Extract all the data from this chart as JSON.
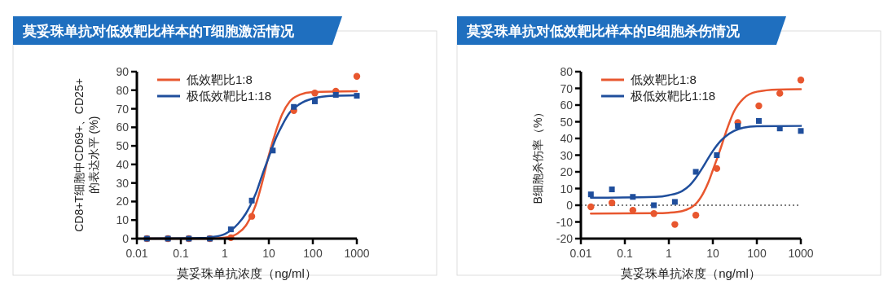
{
  "chart_data": [
    {
      "type": "scatter",
      "title": "莫妥珠单抗对低效靶比样本的T细胞激活情况",
      "xlabel": "莫妥珠单抗浓度（ng/ml）",
      "ylabel": "CD8+T细胞中CD69+、CD25+\n的表达水平 (%)",
      "log": "x",
      "xlim": [
        0.01,
        1000
      ],
      "xticks": [
        0.01,
        0.1,
        1,
        10,
        100,
        1000
      ],
      "ylim": [
        0,
        90
      ],
      "yticks": [
        0,
        10,
        20,
        30,
        40,
        50,
        60,
        70,
        80,
        90
      ],
      "grid": false,
      "legend": "top left",
      "series": [
        {
          "type": "line",
          "name": "低效靶比1:8",
          "color": "#e8572f",
          "x": [
            0.0169,
            0.5,
            1,
            2,
            3,
            4,
            5,
            7,
            10,
            15,
            20,
            30,
            50,
            100,
            1000
          ],
          "values": [
            0,
            0,
            0.5,
            3,
            7,
            12.5,
            18,
            30,
            45,
            59,
            67,
            74,
            77.5,
            79,
            79.5
          ]
        },
        {
          "type": "line",
          "name": "极低效靶比1:18",
          "color": "#1f4e9c",
          "x": [
            0.0169,
            0.3,
            0.5,
            1,
            2,
            3,
            4,
            5,
            7,
            10,
            15,
            20,
            30,
            50,
            100,
            300,
            1000
          ],
          "values": [
            0,
            0.3,
            0.8,
            2.5,
            8,
            13.5,
            19,
            24,
            34,
            44,
            55,
            61,
            68,
            72.5,
            75.5,
            77,
            77.3
          ]
        },
        {
          "color": "#e8572f",
          "marker": "circle",
          "x": [
            0.0169,
            0.0508,
            0.152,
            0.457,
            1.37,
            4.1,
            12.3,
            37,
            111,
            333,
            1000
          ],
          "values": [
            0,
            0,
            0,
            0,
            0.5,
            12,
            null,
            69,
            78.5,
            79.5,
            87.5
          ]
        },
        {
          "color": "#1f4e9c",
          "marker": "square",
          "x": [
            0.0169,
            0.0508,
            0.152,
            0.457,
            1.37,
            4.1,
            12.3,
            37,
            111,
            333,
            1000
          ],
          "values": [
            0,
            0,
            0,
            0,
            5,
            20.5,
            47.5,
            71,
            74,
            77.5,
            77
          ]
        }
      ]
    },
    {
      "type": "scatter",
      "title": "莫妥珠单抗对低效靶比样本的B细胞杀伤情况",
      "xlabel": "莫妥珠单抗浓度（ng/ml）",
      "ylabel": "B细胞杀伤率（%）",
      "log": "x",
      "xlim": [
        0.01,
        1000
      ],
      "xticks": [
        0.01,
        0.1,
        1,
        10,
        100,
        1000
      ],
      "ylim": [
        -20,
        80
      ],
      "yticks": [
        -20,
        -10,
        0,
        10,
        20,
        30,
        40,
        50,
        60,
        70,
        80
      ],
      "grid": false,
      "legend": "top left",
      "ref_lines": [
        {
          "axis": "y",
          "value": 0,
          "color": "#555555",
          "line_style": "dotted"
        }
      ],
      "series": [
        {
          "type": "line",
          "name": "低效靶比1:8",
          "color": "#e8572f",
          "x": [
            0.0169,
            0.5,
            1,
            2,
            3,
            4,
            6,
            8,
            10,
            15,
            20,
            30,
            50,
            100,
            300,
            1000
          ],
          "values": [
            -5,
            -4.8,
            -4.5,
            -3.5,
            -1.8,
            0.5,
            7,
            14,
            21,
            34,
            44,
            56,
            64,
            68,
            69.3,
            69.5
          ]
        },
        {
          "type": "line",
          "name": "极低效靶比1:18",
          "color": "#1f4e9c",
          "x": [
            0.0169,
            0.5,
            1,
            2,
            3,
            4,
            6,
            8,
            10,
            15,
            20,
            30,
            50,
            100,
            1000
          ],
          "values": [
            4.5,
            5,
            6,
            8.5,
            12,
            16,
            23,
            28.5,
            32.5,
            38.5,
            41.5,
            44.5,
            46.5,
            47.3,
            47.5
          ]
        },
        {
          "color": "#e8572f",
          "marker": "circle",
          "x": [
            0.0169,
            0.0508,
            0.152,
            0.457,
            1.37,
            4.1,
            12.3,
            37,
            111,
            333,
            1000
          ],
          "values": [
            -1,
            1.5,
            -3,
            -5,
            -11.5,
            -6,
            22,
            49.5,
            59.5,
            67,
            75
          ]
        },
        {
          "color": "#1f4e9c",
          "marker": "square",
          "x": [
            0.0169,
            0.0508,
            0.152,
            0.457,
            1.37,
            4.1,
            12.3,
            37,
            111,
            333,
            1000
          ],
          "values": [
            6.5,
            9.5,
            5,
            0,
            2,
            20,
            30,
            47.5,
            50.5,
            46,
            44.5
          ]
        }
      ]
    }
  ]
}
